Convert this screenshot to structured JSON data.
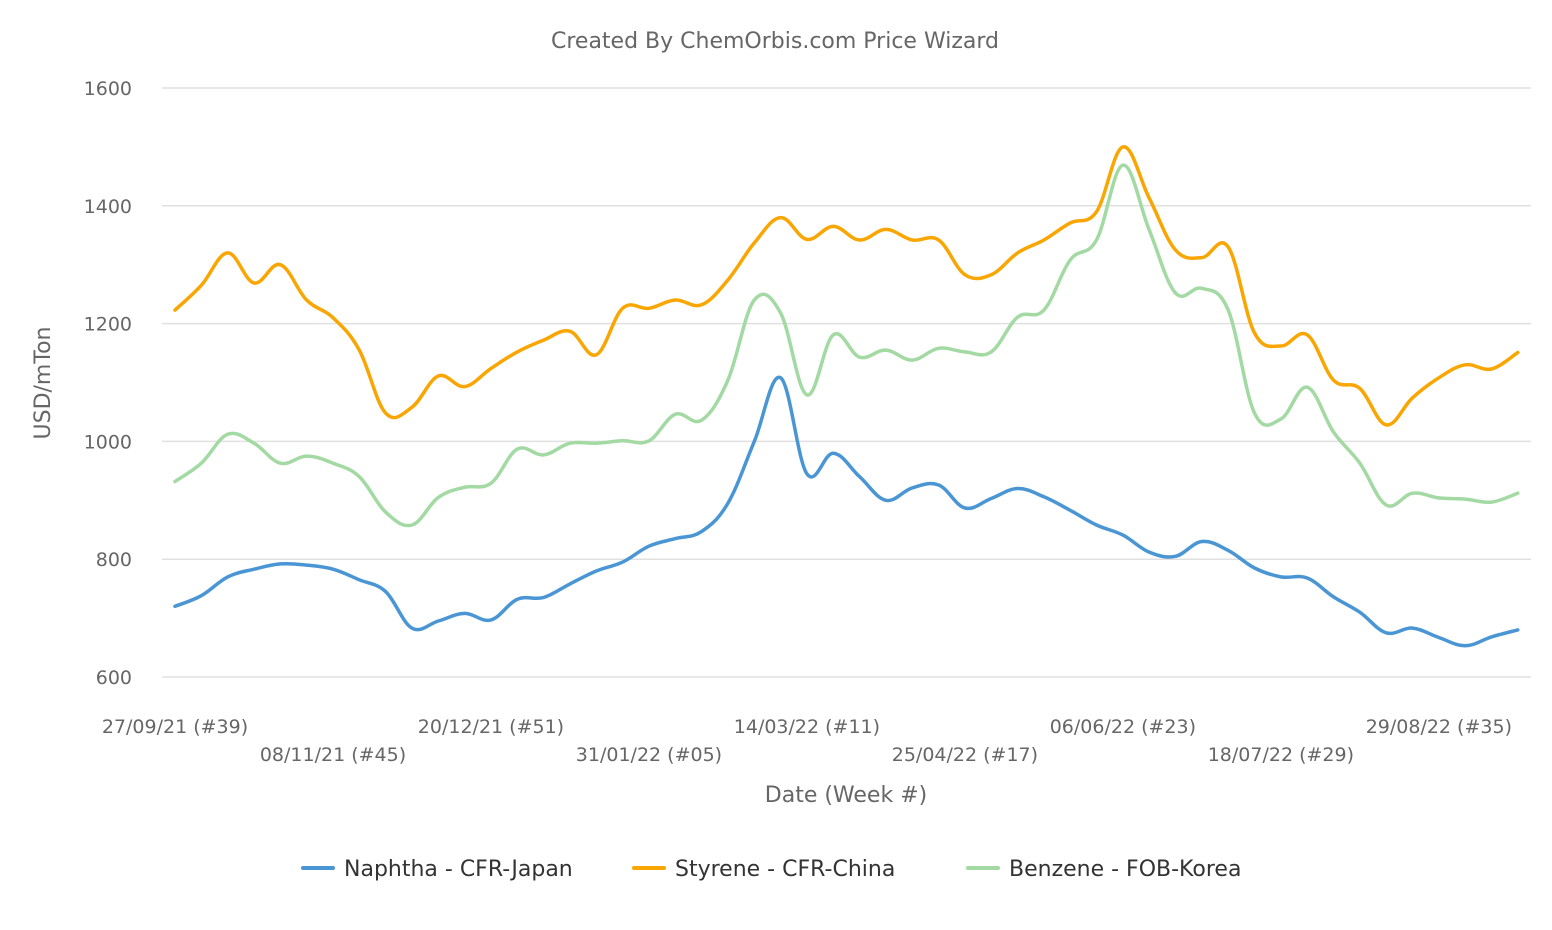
{
  "chart_data": {
    "type": "line",
    "title": "Created By ChemOrbis.com Price Wizard",
    "xlabel": "Date (Week #)",
    "ylabel": "USD/mTon",
    "ylim": [
      600,
      1600
    ],
    "yticks": [
      600,
      800,
      1000,
      1200,
      1400,
      1600
    ],
    "grid": "horizontal",
    "legend": "bottom-center",
    "x_tick_labels": [
      {
        "index": 0,
        "label": "27/09/21 (#39)"
      },
      {
        "index": 6,
        "label": "08/11/21 (#45)"
      },
      {
        "index": 12,
        "label": "20/12/21 (#51)"
      },
      {
        "index": 18,
        "label": "31/01/22 (#05)"
      },
      {
        "index": 24,
        "label": "14/03/22 (#11)"
      },
      {
        "index": 30,
        "label": "25/04/22 (#17)"
      },
      {
        "index": 36,
        "label": "06/06/22 (#23)"
      },
      {
        "index": 42,
        "label": "18/07/22 (#29)"
      },
      {
        "index": 48,
        "label": "29/08/22 (#35)"
      }
    ],
    "series": [
      {
        "name": "Naphtha - CFR-Japan",
        "color": "#4a96d4",
        "values": [
          720,
          738,
          770,
          783,
          792,
          790,
          783,
          765,
          745,
          683,
          695,
          708,
          697,
          732,
          735,
          758,
          780,
          795,
          822,
          835,
          847,
          895,
          1000,
          1108,
          945,
          980,
          940,
          900,
          921,
          926,
          887,
          903,
          920,
          906,
          883,
          858,
          841,
          812,
          805,
          830,
          815,
          785,
          770,
          768,
          736,
          710,
          675,
          683,
          667,
          653,
          668,
          680
        ]
      },
      {
        "name": "Styrene - CFR-China",
        "color": "#f9a602",
        "values": [
          1223,
          1265,
          1320,
          1269,
          1300,
          1240,
          1210,
          1155,
          1048,
          1058,
          1111,
          1093,
          1124,
          1152,
          1172,
          1187,
          1147,
          1226,
          1226,
          1240,
          1232,
          1274,
          1337,
          1380,
          1343,
          1365,
          1342,
          1360,
          1342,
          1342,
          1283,
          1283,
          1320,
          1342,
          1371,
          1390,
          1500,
          1413,
          1325,
          1312,
          1330,
          1184,
          1162,
          1181,
          1104,
          1090,
          1028,
          1074,
          1108,
          1130,
          1123,
          1151
        ]
      },
      {
        "name": "Benzene - FOB-Korea",
        "color": "#a3d9a3",
        "values": [
          932,
          963,
          1012,
          997,
          963,
          975,
          963,
          940,
          880,
          858,
          905,
          922,
          929,
          987,
          977,
          997,
          997,
          1001,
          1001,
          1046,
          1036,
          1104,
          1240,
          1218,
          1079,
          1181,
          1143,
          1155,
          1138,
          1158,
          1152,
          1152,
          1211,
          1223,
          1308,
          1342,
          1469,
          1359,
          1252,
          1260,
          1223,
          1048,
          1038,
          1092,
          1016,
          963,
          892,
          912,
          904,
          902,
          897,
          912
        ]
      }
    ]
  }
}
